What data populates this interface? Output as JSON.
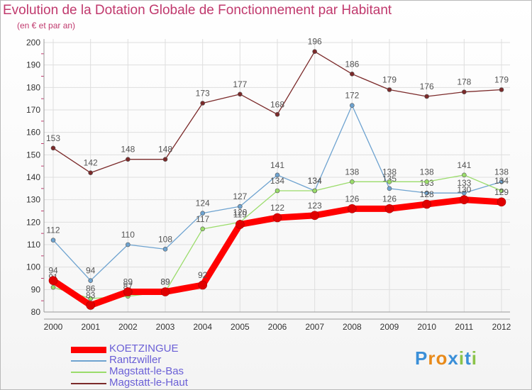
{
  "title": "Evolution de la Dotation Globale de Fonctionnement par Habitant",
  "subtitle": "(en € et par an)",
  "logo": "Proxiti",
  "chart_data": {
    "type": "line",
    "x": [
      2000,
      2001,
      2002,
      2003,
      2004,
      2005,
      2006,
      2007,
      2008,
      2009,
      2010,
      2011,
      2012
    ],
    "ylim": [
      80,
      200
    ],
    "yticks": [
      80,
      90,
      100,
      110,
      120,
      130,
      140,
      150,
      160,
      170,
      180,
      190,
      200
    ],
    "grid": true,
    "legend": "bottom-left",
    "series": [
      {
        "name": "Magstatt-le-Haut",
        "color": "#7b2a2a",
        "values": [
          153,
          142,
          148,
          148,
          173,
          177,
          168,
          196,
          186,
          179,
          176,
          178,
          179
        ]
      },
      {
        "name": "Rantzwiller",
        "color": "#6ea3d0",
        "values": [
          112,
          94,
          110,
          108,
          124,
          127,
          141,
          134,
          172,
          135,
          133,
          133,
          138
        ]
      },
      {
        "name": "Magstatt-le-Bas",
        "color": "#9adc6a",
        "values": [
          91,
          86,
          87,
          89,
          117,
          120,
          134,
          134,
          138,
          138,
          138,
          141,
          134
        ]
      },
      {
        "name": "KOETZINGUE",
        "color": "#ff0000",
        "values": [
          94,
          83,
          89,
          89,
          92,
          119,
          122,
          123,
          126,
          126,
          128,
          130,
          129
        ]
      }
    ],
    "legend_order": [
      "KOETZINGUE",
      "Rantzwiller",
      "Magstatt-le-Bas",
      "Magstatt-le-Haut"
    ]
  }
}
